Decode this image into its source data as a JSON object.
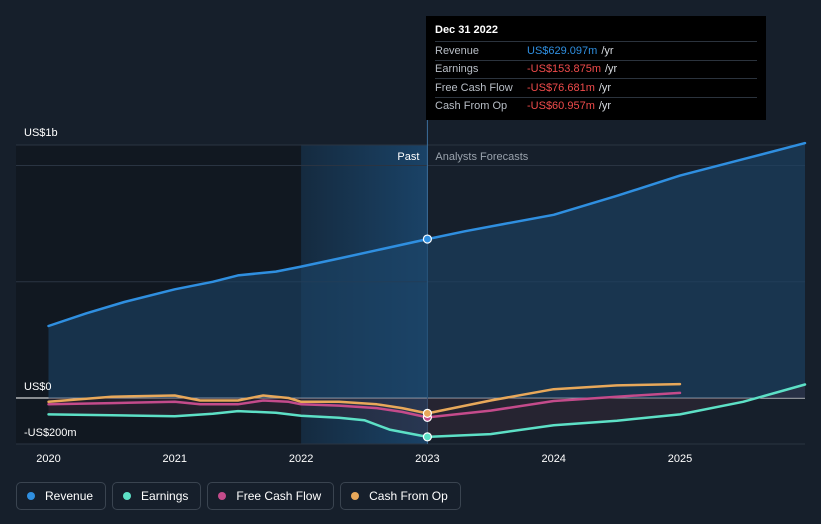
{
  "chart_data": {
    "type": "line",
    "title": "",
    "y_axis_labels": {
      "top": "US$1b",
      "zero": "US$0",
      "bottom": "-US$200m"
    },
    "x_tick_labels": [
      "2020",
      "2021",
      "2022",
      "2023",
      "2024",
      "2025"
    ],
    "x_ticks": [
      2020,
      2021,
      2022,
      2023,
      2024,
      2025
    ],
    "xlim": [
      2019.75,
      2025.75
    ],
    "ylim": [
      -200,
      1000
    ],
    "units": "US$ millions",
    "regions": {
      "past_label": "Past",
      "forecast_label": "Analysts Forecasts",
      "divider_x": 2023.0,
      "highlight_start_x": 2022.0
    },
    "series": [
      {
        "name": "Revenue",
        "color": "#2f8fe0",
        "x": [
          2020.0,
          2020.3,
          2020.6,
          2021.0,
          2021.3,
          2021.5,
          2021.8,
          2022.0,
          2022.3,
          2022.6,
          2023.0,
          2023.3,
          2023.6,
          2024.0,
          2024.5,
          2025.0,
          2025.5,
          2026.0
        ],
        "y": [
          285,
          335,
          380,
          430,
          460,
          485,
          500,
          520,
          552,
          585,
          629,
          660,
          688,
          725,
          800,
          880,
          945,
          1010
        ]
      },
      {
        "name": "Earnings",
        "color": "#5de0c6",
        "x": [
          2020.0,
          2020.5,
          2021.0,
          2021.3,
          2021.5,
          2021.8,
          2022.0,
          2022.3,
          2022.5,
          2022.7,
          2023.0,
          2023.5,
          2024.0,
          2024.5,
          2025.0,
          2025.5,
          2026.0
        ],
        "y": [
          -65,
          -68,
          -72,
          -62,
          -52,
          -58,
          -70,
          -78,
          -88,
          -125,
          -153.875,
          -143,
          -108,
          -90,
          -65,
          -15,
          55
        ]
      },
      {
        "name": "Free Cash Flow",
        "color": "#c44b8b",
        "x": [
          2020.0,
          2020.5,
          2021.0,
          2021.2,
          2021.5,
          2021.7,
          2021.9,
          2022.0,
          2022.3,
          2022.6,
          2022.8,
          2023.0,
          2023.5,
          2024.0,
          2024.5,
          2025.0
        ],
        "y": [
          -25,
          -20,
          -15,
          -25,
          -25,
          -10,
          -15,
          -25,
          -30,
          -40,
          -55,
          -76.681,
          -50,
          -12,
          5,
          20
        ]
      },
      {
        "name": "Cash From Op",
        "color": "#e8a85a",
        "x": [
          2020.0,
          2020.5,
          2021.0,
          2021.2,
          2021.5,
          2021.7,
          2021.9,
          2022.0,
          2022.3,
          2022.6,
          2022.8,
          2023.0,
          2023.5,
          2024.0,
          2024.5,
          2025.0
        ],
        "y": [
          -15,
          5,
          10,
          -10,
          -10,
          10,
          0,
          -15,
          -15,
          -25,
          -40,
          -60.957,
          -10,
          35,
          50,
          55
        ]
      }
    ],
    "highlight_x": 2023.0
  },
  "tooltip": {
    "date": "Dec 31 2022",
    "rows": [
      {
        "label": "Revenue",
        "value": "US$629.097m",
        "unit": "/yr",
        "color": "#2f8fe0"
      },
      {
        "label": "Earnings",
        "value": "-US$153.875m",
        "unit": "/yr",
        "color": "#f04b4b"
      },
      {
        "label": "Free Cash Flow",
        "value": "-US$76.681m",
        "unit": "/yr",
        "color": "#f04b4b"
      },
      {
        "label": "Cash From Op",
        "value": "-US$60.957m",
        "unit": "/yr",
        "color": "#f04b4b"
      }
    ]
  },
  "legend": [
    {
      "label": "Revenue",
      "color": "#2f8fe0"
    },
    {
      "label": "Earnings",
      "color": "#5de0c6"
    },
    {
      "label": "Free Cash Flow",
      "color": "#c44b8b"
    },
    {
      "label": "Cash From Op",
      "color": "#e8a85a"
    }
  ]
}
